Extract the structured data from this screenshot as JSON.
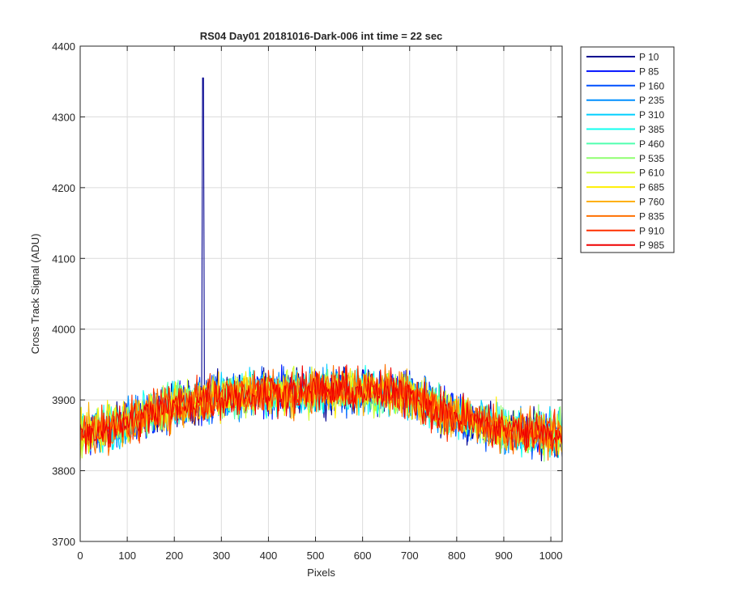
{
  "chart_data": {
    "type": "line",
    "title": "RS04 Day01 20181016-Dark-006 int time = 22 sec",
    "xlabel": "Pixels",
    "ylabel": "Cross Track Signal (ADU)",
    "xlim": [
      0,
      1024
    ],
    "ylim": [
      3700,
      4400
    ],
    "xticks": [
      0,
      100,
      200,
      300,
      400,
      500,
      600,
      700,
      800,
      900,
      1000
    ],
    "yticks": [
      3700,
      3800,
      3900,
      4000,
      4100,
      4200,
      4300,
      4400
    ],
    "xtick_labels": [
      "0",
      "100",
      "200",
      "300",
      "400",
      "500",
      "600",
      "700",
      "800",
      "900",
      "1000"
    ],
    "ytick_labels": [
      "3700",
      "3800",
      "3900",
      "4000",
      "4100",
      "4200",
      "4300",
      "4400"
    ],
    "grid": true,
    "legend_position": "outside-top-right",
    "trend_profile": {
      "x": [
        0,
        100,
        200,
        300,
        400,
        500,
        600,
        700,
        780,
        900,
        1024
      ],
      "mean": [
        3850,
        3868,
        3892,
        3905,
        3910,
        3913,
        3912,
        3908,
        3880,
        3858,
        3850
      ],
      "noise_half_range": 45
    },
    "spike": {
      "series": "P 10",
      "x": 261,
      "y": 4355
    },
    "series": [
      {
        "name": "P 10",
        "color": "#00008f"
      },
      {
        "name": "P 85",
        "color": "#0010ff"
      },
      {
        "name": "P 160",
        "color": "#0050ff"
      },
      {
        "name": "P 235",
        "color": "#008fff"
      },
      {
        "name": "P 310",
        "color": "#00cfff"
      },
      {
        "name": "P 385",
        "color": "#10ffef"
      },
      {
        "name": "P 460",
        "color": "#50ffaf"
      },
      {
        "name": "P 535",
        "color": "#8fff70"
      },
      {
        "name": "P 610",
        "color": "#cfff30"
      },
      {
        "name": "P 685",
        "color": "#ffef00"
      },
      {
        "name": "P 760",
        "color": "#ffaf00"
      },
      {
        "name": "P 835",
        "color": "#ff7000"
      },
      {
        "name": "P 910",
        "color": "#ff3000"
      },
      {
        "name": "P 985",
        "color": "#ef0000"
      }
    ]
  }
}
